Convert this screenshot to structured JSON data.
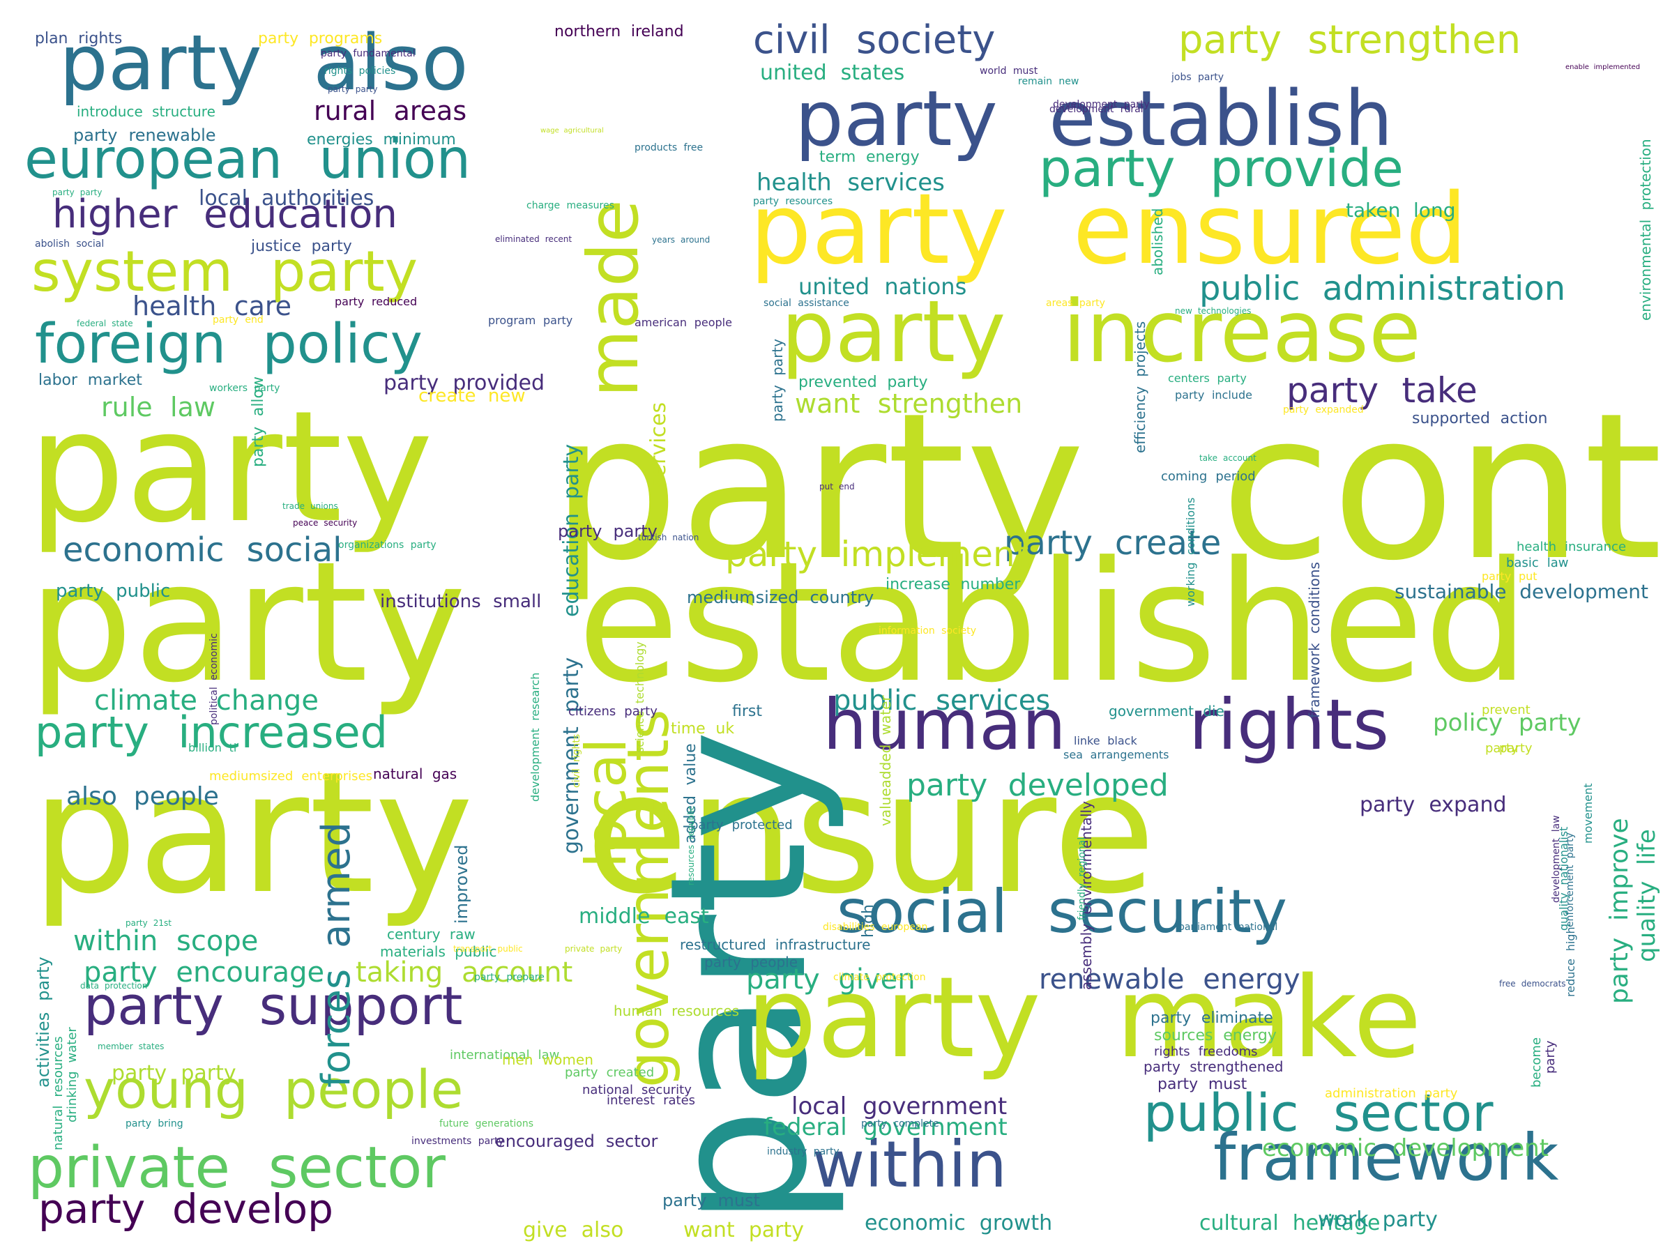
{
  "words": [
    "party",
    "continue",
    "party",
    "established",
    "party",
    "ensure",
    "party",
    "party",
    "party",
    "make",
    "party",
    "ensured",
    "party",
    "increase",
    "party",
    "establish",
    "party",
    "also",
    "human",
    "rights",
    "social",
    "security",
    "within",
    "framework",
    "european",
    "union",
    "foreign",
    "policy",
    "system",
    "party",
    "party",
    "support",
    "young",
    "people",
    "private",
    "sector",
    "public",
    "sector",
    "civil",
    "society",
    "party",
    "strengthen",
    "party",
    "provide",
    "made",
    "party",
    "local",
    "governments",
    "higher",
    "education",
    "public",
    "administration",
    "party",
    "create",
    "party",
    "increased",
    "party",
    "develop",
    "party",
    "take",
    "party",
    "implement",
    "economic",
    "social",
    "public",
    "services",
    "party",
    "developed",
    "renewable",
    "energy",
    "local",
    "government",
    "federal",
    "government",
    "economic",
    "development",
    "economic",
    "growth",
    "cultural",
    "heritage",
    "work",
    "party",
    "armed",
    "forces",
    "climate",
    "change",
    "within",
    "scope",
    "party",
    "encourage",
    "taking",
    "account",
    "party",
    "given",
    "united",
    "states",
    "united",
    "nations",
    "local",
    "authorities",
    "rural",
    "areas",
    "health",
    "care",
    "rule",
    "law",
    "party",
    "provided",
    "want",
    "strengthen",
    "health",
    "services",
    "middle",
    "east",
    "northern",
    "ireland",
    "party",
    "improve",
    "quality",
    "life",
    "policy",
    "party",
    "party",
    "expand",
    "sustainable",
    "development",
    "government",
    "party",
    "education",
    "party",
    "services",
    "party",
    "party",
    "give",
    "also",
    "want",
    "party",
    "encouraged",
    "sector",
    "party",
    "must",
    "also",
    "people",
    "party",
    "public",
    "institutions",
    "small",
    "mediumsized",
    "country",
    "party",
    "party",
    "taken",
    "long",
    "term",
    "energy",
    "efficiency",
    "projects",
    "party",
    "party",
    "prevented",
    "party",
    "supported",
    "action",
    "plan",
    "rights",
    "party",
    "programs",
    "party",
    "fundamental",
    "rights",
    "policies",
    "party",
    "party",
    "introduce",
    "structure",
    "party",
    "renewable",
    "energies",
    "minimum",
    "wage",
    "agricultural",
    "products",
    "free",
    "charge",
    "measures",
    "party",
    "resources",
    "party",
    "party",
    "abolish",
    "social",
    "justice",
    "party",
    "eliminated",
    "recent",
    "years",
    "around",
    "world",
    "must",
    "remain",
    "new",
    "jobs",
    "party",
    "enable",
    "implemented",
    "development",
    "rural",
    "development",
    "party",
    "abolished",
    "environmental",
    "protection",
    "federal",
    "state",
    "party",
    "end",
    "party",
    "reduced",
    "program",
    "party",
    "american",
    "people",
    "social",
    "assistance",
    "areas",
    "party",
    "new",
    "technologies",
    "labor",
    "market",
    "workers",
    "party",
    "create",
    "new",
    "centers",
    "party",
    "party",
    "include",
    "party",
    "expanded",
    "party",
    "allow",
    "trade",
    "unions",
    "peace",
    "security",
    "take",
    "account",
    "put",
    "end",
    "coming",
    "period",
    "health",
    "insurance",
    "basic",
    "law",
    "party",
    "put",
    "increase",
    "number",
    "organizations",
    "party",
    "turkish",
    "nation",
    "information",
    "society",
    "science",
    "technology",
    "working",
    "conditions",
    "framework",
    "conditions",
    "political",
    "economic",
    "development",
    "research",
    "civil",
    "rights",
    "improved",
    "citizens",
    "party",
    "added",
    "value",
    "first",
    "time",
    "uk",
    "government",
    "die",
    "linke",
    "black",
    "sea",
    "arrangements",
    "party",
    "party",
    "prevent",
    "billion",
    "tl",
    "mediumsized",
    "enterprises",
    "natural",
    "gas",
    "party",
    "protected",
    "high",
    "valueadded",
    "water",
    "resources",
    "republic",
    "party",
    "21st",
    "century",
    "raw",
    "materials",
    "public",
    "transport",
    "public",
    "private",
    "party",
    "restructured",
    "infrastructure",
    "party",
    "people",
    "disabilities",
    "european",
    "parliament",
    "national",
    "assembly",
    "environmentally",
    "friendly",
    "regional",
    "development",
    "law",
    "enforcement",
    "party",
    "reduce",
    "high",
    "quality",
    "nationalist",
    "movement",
    "activities",
    "party",
    "data",
    "protection",
    "party",
    "prepare",
    "human",
    "resources",
    "climate",
    "protection",
    "free",
    "democrats",
    "party",
    "eliminate",
    "sources",
    "energy",
    "rights",
    "freedoms",
    "party",
    "strengthened",
    "party",
    "must",
    "party",
    "become",
    "member",
    "states",
    "drinking",
    "water",
    "natural",
    "resources",
    "international",
    "law",
    "men",
    "women",
    "party",
    "created",
    "national",
    "security",
    "interest",
    "rates",
    "party",
    "bring",
    "future",
    "generations",
    "party",
    "complete",
    "administration",
    "party",
    "investments",
    "party",
    "industry",
    "party"
  ]
}
